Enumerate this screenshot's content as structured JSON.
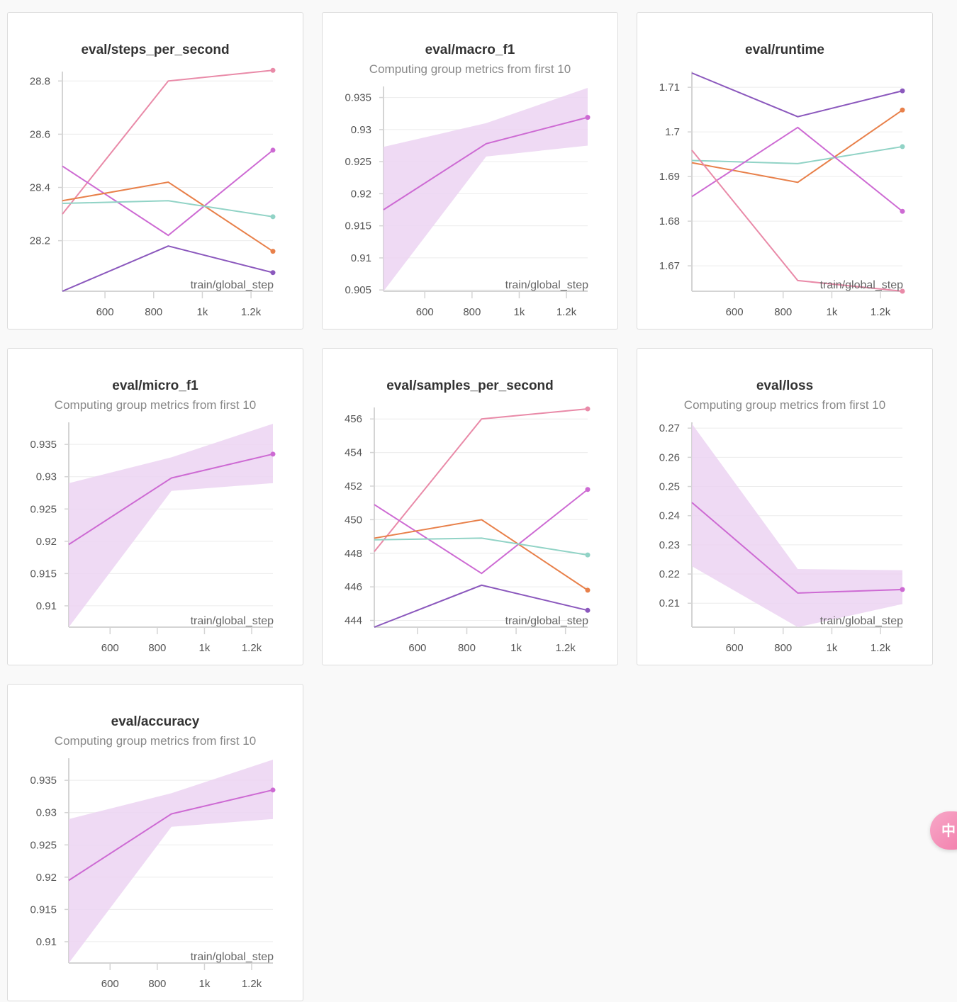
{
  "colors": {
    "pink": "#e98aa8",
    "magenta": "#cd6ad3",
    "orange": "#e8804a",
    "teal": "#91d3c6",
    "purple": "#8b58bd",
    "band": "#ecd4f2"
  },
  "floating_badge": {
    "icon": "translate-icon",
    "text": "中"
  },
  "chart_data": [
    {
      "id": "steps_per_second",
      "type": "line",
      "title": "eval/steps_per_second",
      "subtitle": "",
      "xlabel": "train/global_step",
      "xlim": [
        425,
        1290
      ],
      "ylim": [
        28.01,
        28.83
      ],
      "x_ticks": [
        600,
        800,
        1000,
        1200
      ],
      "x_tick_labels": [
        "600",
        "800",
        "1k",
        "1.2k"
      ],
      "y_ticks": [
        28.2,
        28.4,
        28.6,
        28.8
      ],
      "y_tick_labels": [
        "28.2",
        "28.4",
        "28.6",
        "28.8"
      ],
      "series": [
        {
          "color": "pink",
          "x": [
            425,
            860,
            1290
          ],
          "y": [
            28.3,
            28.8,
            28.84
          ]
        },
        {
          "color": "magenta",
          "x": [
            425,
            860,
            1290
          ],
          "y": [
            28.48,
            28.22,
            28.54
          ]
        },
        {
          "color": "orange",
          "x": [
            425,
            860,
            1290
          ],
          "y": [
            28.35,
            28.42,
            28.16
          ]
        },
        {
          "color": "teal",
          "x": [
            425,
            860,
            1290
          ],
          "y": [
            28.34,
            28.35,
            28.29
          ]
        },
        {
          "color": "purple",
          "x": [
            425,
            860,
            1290
          ],
          "y": [
            28.01,
            28.18,
            28.08
          ]
        }
      ]
    },
    {
      "id": "macro_f1",
      "type": "line",
      "title": "eval/macro_f1",
      "subtitle": "Computing group metrics from first 10",
      "xlabel": "train/global_step",
      "xlim": [
        425,
        1290
      ],
      "ylim": [
        0.9048,
        0.9365
      ],
      "x_ticks": [
        600,
        800,
        1000,
        1200
      ],
      "x_tick_labels": [
        "600",
        "800",
        "1k",
        "1.2k"
      ],
      "y_ticks": [
        0.905,
        0.91,
        0.915,
        0.92,
        0.925,
        0.93,
        0.935
      ],
      "y_tick_labels": [
        "0.905",
        "0.91",
        "0.915",
        "0.92",
        "0.925",
        "0.93",
        "0.935"
      ],
      "band": {
        "color": "band",
        "x": [
          425,
          860,
          1290
        ],
        "upper": [
          0.9273,
          0.931,
          0.9365
        ],
        "lower": [
          0.9048,
          0.9258,
          0.9275
        ]
      },
      "series": [
        {
          "color": "magenta",
          "x": [
            425,
            860,
            1290
          ],
          "y": [
            0.9175,
            0.9278,
            0.9319
          ]
        }
      ]
    },
    {
      "id": "runtime",
      "type": "line",
      "title": "eval/runtime",
      "subtitle": "",
      "xlabel": "train/global_step",
      "xlim": [
        425,
        1290
      ],
      "ylim": [
        1.6643,
        1.7132
      ],
      "x_ticks": [
        600,
        800,
        1000,
        1200
      ],
      "x_tick_labels": [
        "600",
        "800",
        "1k",
        "1.2k"
      ],
      "y_ticks": [
        1.67,
        1.68,
        1.69,
        1.7,
        1.71
      ],
      "y_tick_labels": [
        "1.67",
        "1.68",
        "1.69",
        "1.7",
        "1.71"
      ],
      "series": [
        {
          "color": "purple",
          "x": [
            425,
            860,
            1290
          ],
          "y": [
            1.7132,
            1.7034,
            1.7092
          ]
        },
        {
          "color": "orange",
          "x": [
            425,
            860,
            1290
          ],
          "y": [
            1.6931,
            1.6887,
            1.7049
          ]
        },
        {
          "color": "teal",
          "x": [
            425,
            860,
            1290
          ],
          "y": [
            1.6936,
            1.6929,
            1.6967
          ]
        },
        {
          "color": "magenta",
          "x": [
            425,
            860,
            1290
          ],
          "y": [
            1.6855,
            1.701,
            1.6822
          ]
        },
        {
          "color": "pink",
          "x": [
            425,
            860,
            1290
          ],
          "y": [
            1.6959,
            1.6667,
            1.6643
          ]
        }
      ]
    },
    {
      "id": "micro_f1",
      "type": "line",
      "title": "eval/micro_f1",
      "subtitle": "Computing group metrics from first 10",
      "xlabel": "train/global_step",
      "xlim": [
        425,
        1290
      ],
      "ylim": [
        0.9067,
        0.9382
      ],
      "x_ticks": [
        600,
        800,
        1000,
        1200
      ],
      "x_tick_labels": [
        "600",
        "800",
        "1k",
        "1.2k"
      ],
      "y_ticks": [
        0.91,
        0.915,
        0.92,
        0.925,
        0.93,
        0.935
      ],
      "y_tick_labels": [
        "0.91",
        "0.915",
        "0.92",
        "0.925",
        "0.93",
        "0.935"
      ],
      "band": {
        "color": "band",
        "x": [
          425,
          860,
          1290
        ],
        "upper": [
          0.929,
          0.933,
          0.9382
        ],
        "lower": [
          0.9067,
          0.9278,
          0.929
        ]
      },
      "series": [
        {
          "color": "magenta",
          "x": [
            425,
            860,
            1290
          ],
          "y": [
            0.9195,
            0.9298,
            0.9335
          ]
        }
      ]
    },
    {
      "id": "samples_per_second",
      "type": "line",
      "title": "eval/samples_per_second",
      "subtitle": "",
      "xlabel": "train/global_step",
      "xlim": [
        425,
        1290
      ],
      "ylim": [
        443.6,
        456.6
      ],
      "x_ticks": [
        600,
        800,
        1000,
        1200
      ],
      "x_tick_labels": [
        "600",
        "800",
        "1k",
        "1.2k"
      ],
      "y_ticks": [
        444,
        446,
        448,
        450,
        452,
        454,
        456
      ],
      "y_tick_labels": [
        "444",
        "446",
        "448",
        "450",
        "452",
        "454",
        "456"
      ],
      "series": [
        {
          "color": "pink",
          "x": [
            425,
            860,
            1290
          ],
          "y": [
            448.1,
            456.0,
            456.6
          ]
        },
        {
          "color": "magenta",
          "x": [
            425,
            860,
            1290
          ],
          "y": [
            450.9,
            446.8,
            451.8
          ]
        },
        {
          "color": "orange",
          "x": [
            425,
            860,
            1290
          ],
          "y": [
            448.9,
            450.0,
            445.8
          ]
        },
        {
          "color": "teal",
          "x": [
            425,
            860,
            1290
          ],
          "y": [
            448.8,
            448.9,
            447.9
          ]
        },
        {
          "color": "purple",
          "x": [
            425,
            860,
            1290
          ],
          "y": [
            443.6,
            446.1,
            444.6
          ]
        }
      ]
    },
    {
      "id": "loss",
      "type": "line",
      "title": "eval/loss",
      "subtitle": "Computing group metrics from first 10",
      "xlabel": "train/global_step",
      "xlim": [
        425,
        1290
      ],
      "ylim": [
        0.2018,
        0.2715
      ],
      "x_ticks": [
        600,
        800,
        1000,
        1200
      ],
      "x_tick_labels": [
        "600",
        "800",
        "1k",
        "1.2k"
      ],
      "y_ticks": [
        0.21,
        0.22,
        0.23,
        0.24,
        0.25,
        0.26,
        0.27
      ],
      "y_tick_labels": [
        "0.21",
        "0.22",
        "0.23",
        "0.24",
        "0.25",
        "0.26",
        "0.27"
      ],
      "band": {
        "color": "band",
        "x": [
          425,
          860,
          1290
        ],
        "upper": [
          0.2715,
          0.2217,
          0.2213
        ],
        "lower": [
          0.2227,
          0.2018,
          0.2097
        ]
      },
      "series": [
        {
          "color": "magenta",
          "x": [
            425,
            860,
            1290
          ],
          "y": [
            0.2445,
            0.2135,
            0.2147
          ]
        }
      ]
    },
    {
      "id": "accuracy",
      "type": "line",
      "title": "eval/accuracy",
      "subtitle": "Computing group metrics from first 10",
      "xlabel": "train/global_step",
      "xlim": [
        425,
        1290
      ],
      "ylim": [
        0.9067,
        0.9382
      ],
      "x_ticks": [
        600,
        800,
        1000,
        1200
      ],
      "x_tick_labels": [
        "600",
        "800",
        "1k",
        "1.2k"
      ],
      "y_ticks": [
        0.91,
        0.915,
        0.92,
        0.925,
        0.93,
        0.935
      ],
      "y_tick_labels": [
        "0.91",
        "0.915",
        "0.92",
        "0.925",
        "0.93",
        "0.935"
      ],
      "band": {
        "color": "band",
        "x": [
          425,
          860,
          1290
        ],
        "upper": [
          0.929,
          0.933,
          0.9382
        ],
        "lower": [
          0.9067,
          0.9278,
          0.929
        ]
      },
      "series": [
        {
          "color": "magenta",
          "x": [
            425,
            860,
            1290
          ],
          "y": [
            0.9195,
            0.9298,
            0.9335
          ]
        }
      ]
    }
  ]
}
